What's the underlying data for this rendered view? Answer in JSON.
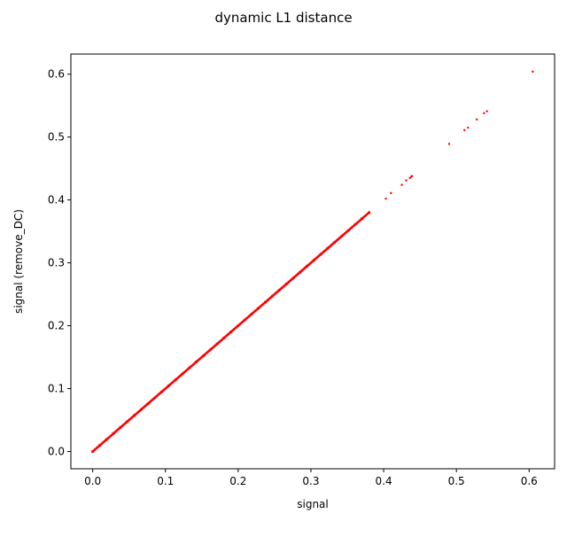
{
  "chart_data": {
    "type": "scatter",
    "title": "dynamic L1 distance",
    "xlabel": "signal",
    "ylabel": "signal (remove_DC)",
    "xlim": [
      -0.03,
      0.635
    ],
    "ylim": [
      -0.0275,
      0.632
    ],
    "xticks": [
      0.0,
      0.1,
      0.2,
      0.3,
      0.4,
      0.5,
      0.6
    ],
    "xtick_labels": [
      "0.0",
      "0.1",
      "0.2",
      "0.3",
      "0.4",
      "0.5",
      "0.6"
    ],
    "yticks": [
      0.0,
      0.1,
      0.2,
      0.3,
      0.4,
      0.5,
      0.6
    ],
    "ytick_labels": [
      "0.0",
      "0.1",
      "0.2",
      "0.3",
      "0.4",
      "0.5",
      "0.6"
    ],
    "grid": false,
    "marker_color": "#ff0000",
    "dense_segment": {
      "x_start": 0.0,
      "x_end": 0.38,
      "relation": "y = x"
    },
    "points": [
      {
        "x": 0.403,
        "y": 0.402
      },
      {
        "x": 0.41,
        "y": 0.411
      },
      {
        "x": 0.425,
        "y": 0.424
      },
      {
        "x": 0.431,
        "y": 0.431
      },
      {
        "x": 0.436,
        "y": 0.435
      },
      {
        "x": 0.438,
        "y": 0.437
      },
      {
        "x": 0.439,
        "y": 0.438
      },
      {
        "x": 0.49,
        "y": 0.489
      },
      {
        "x": 0.511,
        "y": 0.511
      },
      {
        "x": 0.516,
        "y": 0.515
      },
      {
        "x": 0.528,
        "y": 0.528
      },
      {
        "x": 0.538,
        "y": 0.538
      },
      {
        "x": 0.542,
        "y": 0.541
      },
      {
        "x": 0.605,
        "y": 0.604
      }
    ]
  }
}
